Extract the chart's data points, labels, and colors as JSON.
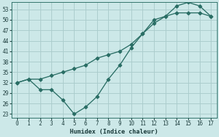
{
  "xlabel": "Humidex (Indice chaleur)",
  "background_color": "#cce8e8",
  "grid_color": "#aacccc",
  "line_color": "#2a6e65",
  "marker": "D",
  "marker_size": 2.5,
  "line_width": 1.0,
  "xlim": [
    -0.5,
    17.5
  ],
  "ylim": [
    22,
    55
  ],
  "xticks": [
    0,
    1,
    2,
    3,
    4,
    5,
    6,
    7,
    8,
    9,
    10,
    11,
    12,
    13,
    14,
    15,
    16,
    17
  ],
  "yticks": [
    23,
    26,
    29,
    32,
    35,
    38,
    41,
    44,
    47,
    50,
    53
  ],
  "curve1_x": [
    0,
    1,
    2,
    3,
    4,
    5,
    6,
    7,
    8,
    9,
    10,
    11,
    12,
    13,
    14,
    15,
    16,
    17
  ],
  "curve1_y": [
    32,
    33,
    30,
    30,
    27,
    23,
    25,
    28,
    33,
    37,
    42,
    46,
    50,
    51,
    54,
    55,
    54,
    51
  ],
  "curve2_x": [
    0,
    1,
    2,
    3,
    4,
    5,
    6,
    7,
    8,
    9,
    10,
    11,
    12,
    13,
    14,
    15,
    16,
    17
  ],
  "curve2_y": [
    32,
    33,
    33,
    34,
    35,
    36,
    37,
    39,
    40,
    41,
    43,
    46,
    49,
    51,
    52,
    52,
    52,
    51
  ]
}
